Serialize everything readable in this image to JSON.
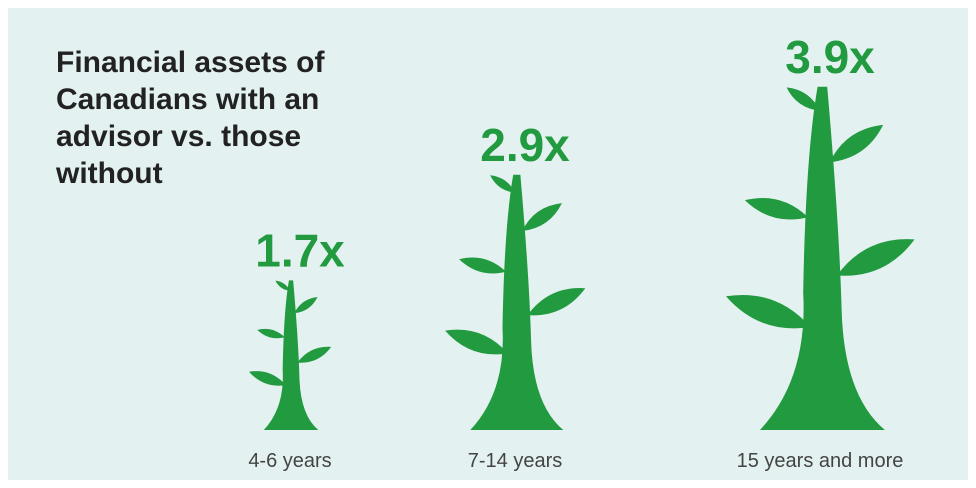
{
  "chart_data": {
    "type": "pictorial",
    "title": "Financial assets of Canadians with an advisor vs. those without",
    "categories": [
      "4-6 years",
      "7-14 years",
      "15 years and more"
    ],
    "values": [
      1.7,
      2.9,
      3.9
    ],
    "value_labels": [
      "1.7x",
      "2.9x",
      "3.9x"
    ],
    "color": "#229a40"
  }
}
